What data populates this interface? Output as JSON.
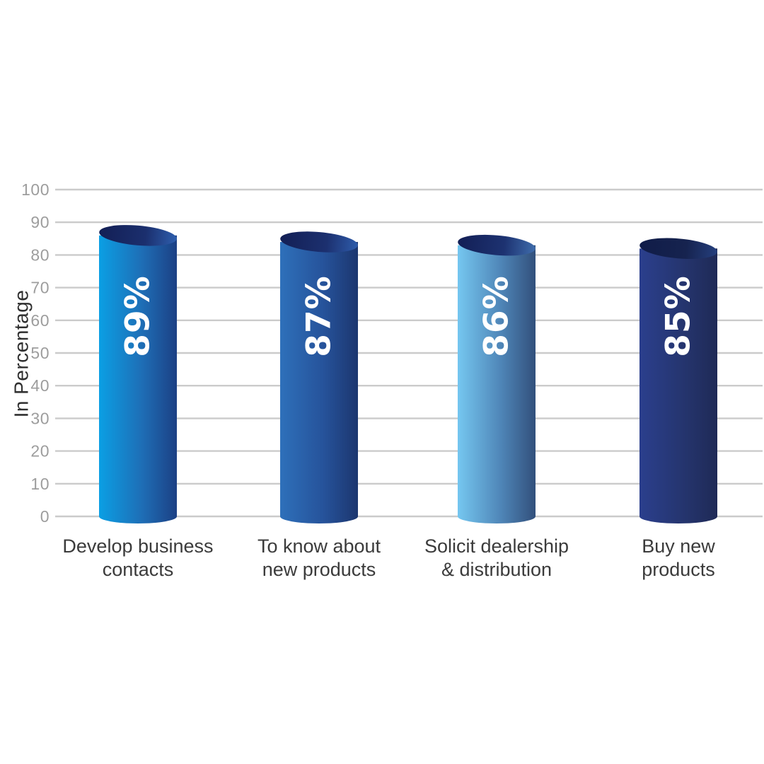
{
  "page": {
    "background": "#ffffff"
  },
  "chart_data": {
    "type": "bar",
    "variant": "3d-cylinder-vertical",
    "title": "",
    "xlabel": "",
    "ylabel": "In Percentage",
    "ylim": [
      0,
      100
    ],
    "yticks": [
      0,
      10,
      20,
      30,
      40,
      50,
      60,
      70,
      80,
      90,
      100
    ],
    "grid": "horizontal",
    "legend": "none",
    "categories": [
      "Develop business\ncontacts",
      "To know about\nnew products",
      "Solicit dealership\n& distribution",
      "Buy new\nproducts"
    ],
    "values": [
      89,
      87,
      86,
      85
    ],
    "value_labels": [
      "89%",
      "87%",
      "86%",
      "85%"
    ],
    "value_label_rotation": -90,
    "series": [
      {
        "name": "In Percentage",
        "values": [
          89,
          87,
          86,
          85
        ]
      }
    ],
    "colors": {
      "background": "#ffffff",
      "gridline": "#cbcbcb",
      "tick_label": "#9d9d9d",
      "axis_label": "#2f2f2f",
      "category_label": "#3b3b3b",
      "value_label": "#ffffff",
      "bars": [
        {
          "body": [
            "#0b9fe4",
            "#1e6eb6",
            "#1c4084"
          ],
          "cap": [
            "#131f55",
            "#1b2f6e",
            "#2e5fae"
          ]
        },
        {
          "body": [
            "#2e70ba",
            "#26539b",
            "#1c366f"
          ],
          "cap": [
            "#131f55",
            "#1c306f",
            "#2e5cab"
          ]
        },
        {
          "body": [
            "#75c7f0",
            "#4f86b8",
            "#32507c"
          ],
          "cap": [
            "#131f55",
            "#1d3271",
            "#3f6dac"
          ]
        },
        {
          "body": [
            "#2b3f8d",
            "#25356f",
            "#1f2a56"
          ],
          "cap": [
            "#101c48",
            "#16234f",
            "#253f7d"
          ]
        }
      ]
    }
  }
}
